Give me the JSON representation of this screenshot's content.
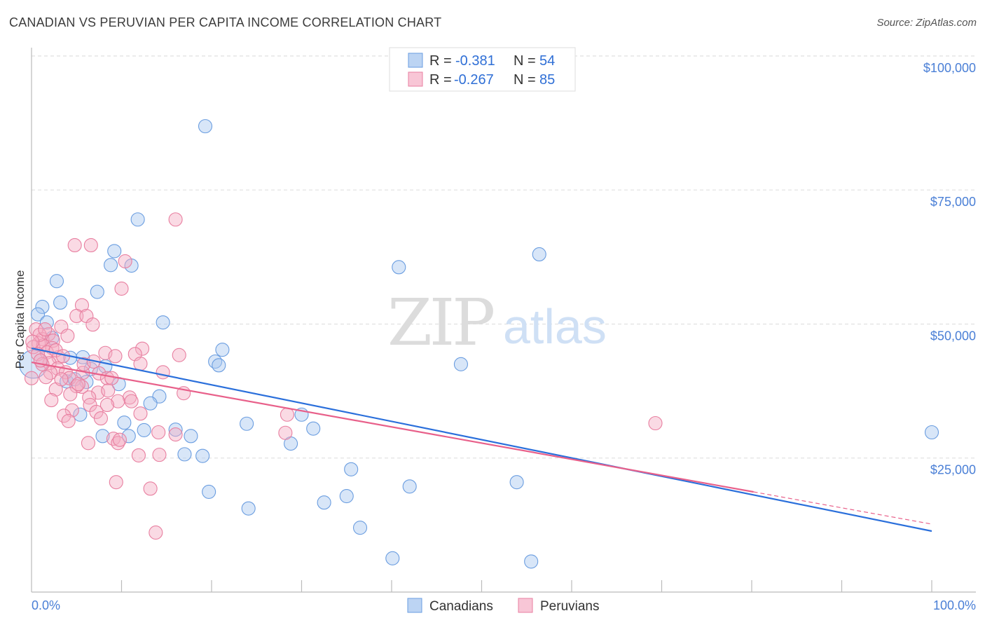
{
  "chart_data": {
    "type": "scatter",
    "title": "CANADIAN VS PERUVIAN PER CAPITA INCOME CORRELATION CHART",
    "source": "Source: ZipAtlas.com",
    "xlabel": "",
    "ylabel": "Per Capita Income",
    "xlim": [
      0,
      100
    ],
    "ylim": [
      0,
      107000
    ],
    "x_tick_labels": {
      "min": "0.0%",
      "max": "100.0%"
    },
    "y_ticks": [
      {
        "value": 100000,
        "label": "$100,000"
      },
      {
        "value": 75000,
        "label": "$75,000"
      },
      {
        "value": 50000,
        "label": "$50,000"
      },
      {
        "value": 25000,
        "label": "$25,000"
      }
    ],
    "grid": true,
    "legend_placement": "top-center",
    "watermark": "ZIPatlas",
    "series": [
      {
        "name": "Canadians",
        "color": "#6a9de0",
        "fill": "#a9c8f0",
        "line_color": "#2a6fdb",
        "legend": {
          "r_label": "R = ",
          "r": "-0.381",
          "n_label": "N = ",
          "n": "54"
        },
        "trend": {
          "x": [
            0,
            100
          ],
          "y": [
            45480,
            11370
          ]
        },
        "points": [
          [
            19.3,
            86900
          ],
          [
            11.8,
            69500
          ],
          [
            9.2,
            63600
          ],
          [
            8.8,
            61000
          ],
          [
            11.1,
            60900
          ],
          [
            2.8,
            58000
          ],
          [
            7.3,
            56000
          ],
          [
            1.2,
            53200
          ],
          [
            3.2,
            54000
          ],
          [
            0.7,
            51800
          ],
          [
            1.7,
            50300
          ],
          [
            14.6,
            50300
          ],
          [
            2.3,
            47400
          ],
          [
            5.7,
            43800
          ],
          [
            4.3,
            43700
          ],
          [
            8.2,
            42100
          ],
          [
            6.6,
            41600
          ],
          [
            21.2,
            45200
          ],
          [
            20.4,
            43000
          ],
          [
            20.8,
            42300
          ],
          [
            47.7,
            42500
          ],
          [
            56.4,
            63000
          ],
          [
            40.8,
            60600
          ],
          [
            3.9,
            39300
          ],
          [
            9.7,
            38800
          ],
          [
            6.1,
            39200
          ],
          [
            14.2,
            36500
          ],
          [
            13.2,
            35200
          ],
          [
            5.4,
            33100
          ],
          [
            10.3,
            31600
          ],
          [
            12.5,
            30200
          ],
          [
            16.0,
            30300
          ],
          [
            23.9,
            31400
          ],
          [
            17.7,
            29100
          ],
          [
            30.0,
            33100
          ],
          [
            31.3,
            30500
          ],
          [
            7.9,
            29100
          ],
          [
            10.8,
            29100
          ],
          [
            28.8,
            27700
          ],
          [
            17.0,
            25700
          ],
          [
            19.0,
            25400
          ],
          [
            35.5,
            22900
          ],
          [
            42.0,
            19700
          ],
          [
            53.9,
            20500
          ],
          [
            19.7,
            18700
          ],
          [
            24.1,
            15600
          ],
          [
            32.5,
            16700
          ],
          [
            35.0,
            17900
          ],
          [
            36.5,
            12000
          ],
          [
            40.1,
            6300
          ],
          [
            55.5,
            5700
          ],
          [
            100,
            29800
          ],
          [
            0.2,
            42500
          ],
          [
            4.8,
            39700
          ]
        ]
      },
      {
        "name": "Peruvians",
        "color": "#e87fa0",
        "fill": "#f5aec4",
        "line_color": "#e8608a",
        "legend": {
          "r_label": "R = ",
          "r": "-0.267",
          "n_label": "N = ",
          "n": "85"
        },
        "trend": {
          "x": [
            0,
            80.2
          ],
          "y": [
            42860,
            18690
          ],
          "dashed_to": {
            "x": 100,
            "y": 12680
          }
        },
        "points": [
          [
            16.0,
            69500
          ],
          [
            4.8,
            64700
          ],
          [
            6.6,
            64700
          ],
          [
            10.4,
            61700
          ],
          [
            10.0,
            56600
          ],
          [
            5.6,
            53500
          ],
          [
            5.0,
            51500
          ],
          [
            6.1,
            51500
          ],
          [
            6.8,
            49900
          ],
          [
            3.3,
            49500
          ],
          [
            0.5,
            49000
          ],
          [
            1.9,
            48100
          ],
          [
            1.2,
            47200
          ],
          [
            2.4,
            46900
          ],
          [
            0.8,
            46400
          ],
          [
            0.2,
            45700
          ],
          [
            1.3,
            46000
          ],
          [
            2.3,
            45500
          ],
          [
            1.7,
            44700
          ],
          [
            3.0,
            43800
          ],
          [
            0.7,
            44400
          ],
          [
            8.2,
            44600
          ],
          [
            12.3,
            45400
          ],
          [
            11.5,
            44400
          ],
          [
            16.4,
            44200
          ],
          [
            12.1,
            42600
          ],
          [
            2.0,
            42700
          ],
          [
            2.9,
            41700
          ],
          [
            3.8,
            41000
          ],
          [
            0.0,
            39900
          ],
          [
            2.1,
            40900
          ],
          [
            5.7,
            40900
          ],
          [
            7.5,
            40800
          ],
          [
            8.4,
            39900
          ],
          [
            14.6,
            41000
          ],
          [
            4.2,
            39900
          ],
          [
            5.6,
            38300
          ],
          [
            2.7,
            37800
          ],
          [
            5.0,
            38400
          ],
          [
            7.4,
            37200
          ],
          [
            8.5,
            37600
          ],
          [
            16.9,
            37100
          ],
          [
            4.3,
            36900
          ],
          [
            6.4,
            36300
          ],
          [
            10.9,
            36300
          ],
          [
            9.6,
            35600
          ],
          [
            11.1,
            35600
          ],
          [
            6.5,
            34900
          ],
          [
            8.4,
            34900
          ],
          [
            4.5,
            33900
          ],
          [
            7.2,
            33600
          ],
          [
            3.6,
            32900
          ],
          [
            7.7,
            32400
          ],
          [
            4.1,
            31900
          ],
          [
            28.4,
            33100
          ],
          [
            69.3,
            31500
          ],
          [
            14.1,
            29800
          ],
          [
            28.2,
            29700
          ],
          [
            9.1,
            28600
          ],
          [
            9.6,
            27800
          ],
          [
            6.3,
            27800
          ],
          [
            9.8,
            28400
          ],
          [
            11.9,
            25500
          ],
          [
            14.2,
            25600
          ],
          [
            9.4,
            20500
          ],
          [
            13.2,
            19300
          ],
          [
            13.8,
            11100
          ],
          [
            1.2,
            42500
          ],
          [
            1.6,
            40100
          ],
          [
            5.2,
            38800
          ],
          [
            3.3,
            39700
          ],
          [
            0.9,
            48000
          ],
          [
            1.5,
            49000
          ],
          [
            0.1,
            46700
          ],
          [
            2.7,
            45100
          ],
          [
            5.8,
            42500
          ],
          [
            8.9,
            39900
          ],
          [
            12.1,
            33300
          ],
          [
            16.0,
            29400
          ],
          [
            3.5,
            44000
          ],
          [
            6.9,
            43000
          ],
          [
            4.0,
            47800
          ],
          [
            2.2,
            35800
          ],
          [
            9.3,
            44000
          ],
          [
            1.0,
            43200
          ]
        ]
      }
    ]
  }
}
